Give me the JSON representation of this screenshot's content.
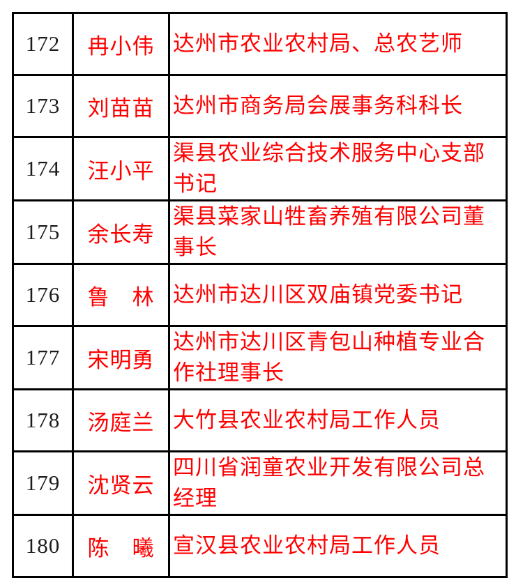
{
  "page": {
    "background_color": "#ffffff",
    "border_color": "#000000",
    "number_text_color": "#1c1c1c",
    "highlight_text_color": "#ff0000"
  },
  "table": {
    "rows": [
      {
        "no": "172",
        "name": "冉小伟",
        "title": "达州市农业农村局、总农艺师"
      },
      {
        "no": "173",
        "name": "刘苗苗",
        "title": "达州市商务局会展事务科科长"
      },
      {
        "no": "174",
        "name": "汪小平",
        "title": "渠县农业综合技术服务中心支部书记"
      },
      {
        "no": "175",
        "name": "余长寿",
        "title": "渠县菜家山牲畜养殖有限公司董事长"
      },
      {
        "no": "176",
        "name": "鲁　林",
        "title": "达州市达川区双庙镇党委书记"
      },
      {
        "no": "177",
        "name": "宋明勇",
        "title": "达州市达川区青包山种植专业合作社理事长"
      },
      {
        "no": "178",
        "name": "汤庭兰",
        "title": "大竹县农业农村局工作人员"
      },
      {
        "no": "179",
        "name": "沈贤云",
        "title": "四川省润童农业开发有限公司总经理"
      },
      {
        "no": "180",
        "name": "陈　曦",
        "title": "宣汉县农业农村局工作人员"
      }
    ]
  }
}
